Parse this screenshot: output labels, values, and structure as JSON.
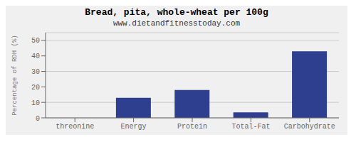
{
  "chart_data": {
    "type": "bar",
    "title": "Bread, pita, whole-wheat per 100g",
    "subtitle": "www.dietandfitnesstoday.com",
    "categories": [
      "threonine",
      "Energy",
      "Protein",
      "Total-Fat",
      "Carbohydrate"
    ],
    "values": [
      0,
      13,
      18,
      3.5,
      43
    ],
    "color": "#2e3f8f",
    "ylabel": "Percentage of RDH (%)",
    "ylim": [
      0,
      55
    ],
    "yticks": [
      0,
      10,
      20,
      30,
      40,
      50
    ],
    "grid": true
  }
}
